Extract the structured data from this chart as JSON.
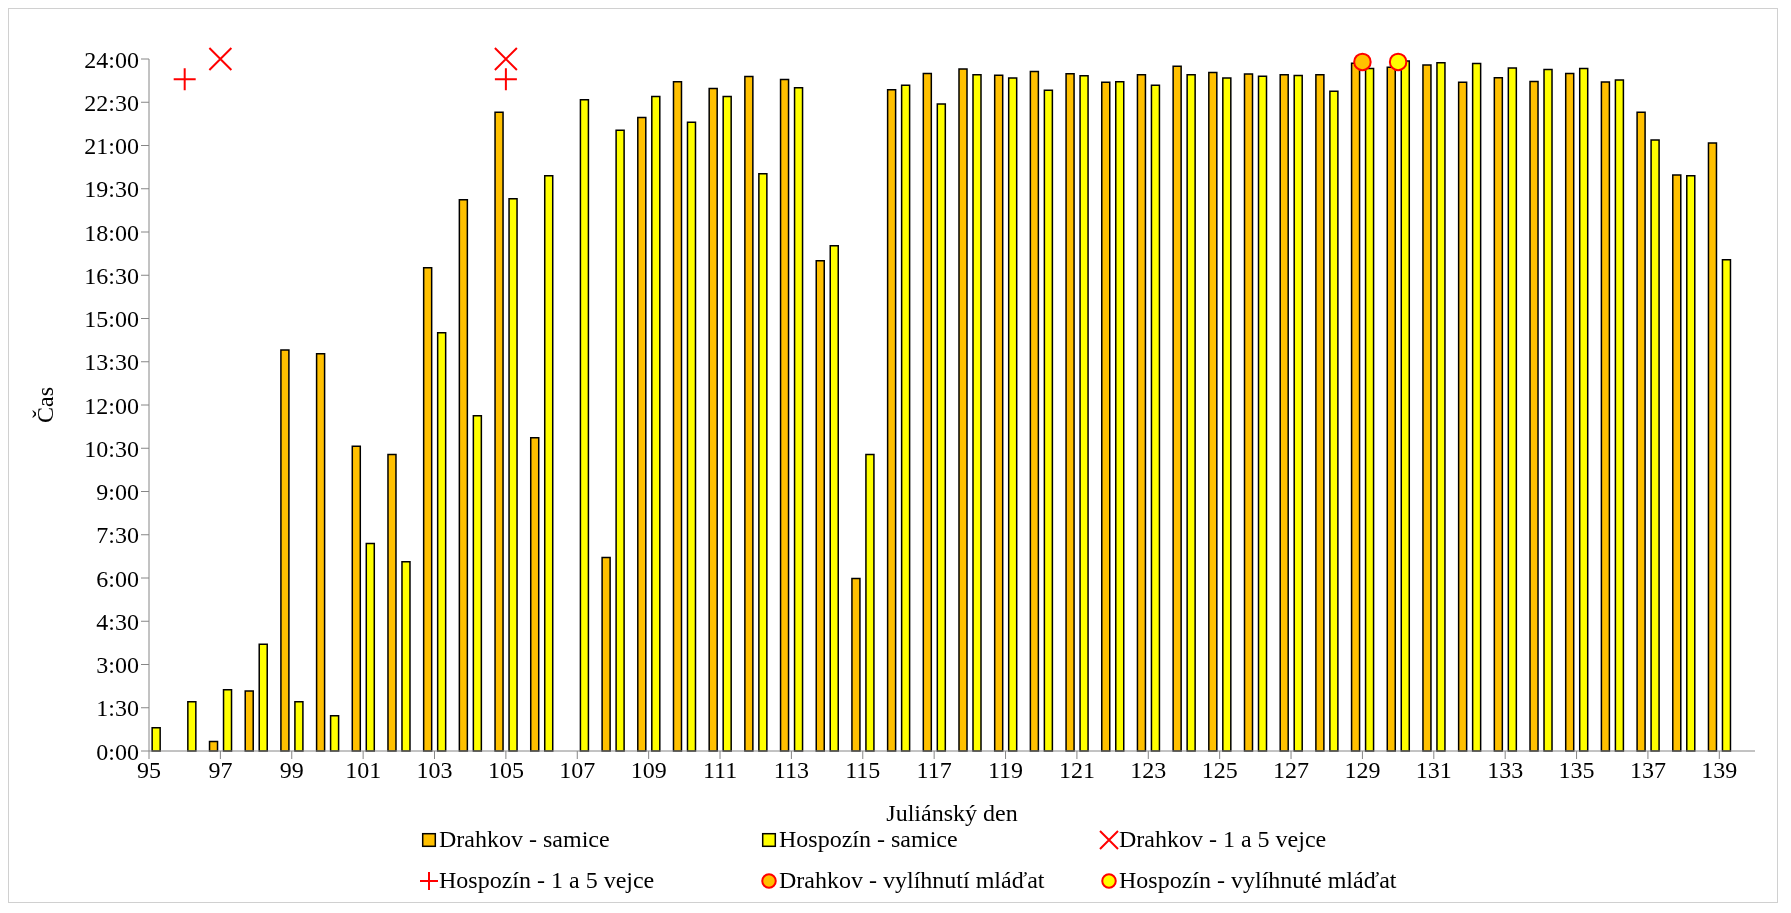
{
  "chart_data": {
    "type": "bar",
    "xlabel": "Juliánský den",
    "ylabel": "Čas",
    "x": [
      95,
      96,
      97,
      98,
      99,
      100,
      101,
      102,
      103,
      104,
      105,
      106,
      107,
      108,
      109,
      110,
      111,
      112,
      113,
      114,
      115,
      116,
      117,
      118,
      119,
      120,
      121,
      122,
      123,
      124,
      125,
      126,
      127,
      128,
      129,
      130,
      131,
      132,
      133,
      134,
      135,
      136,
      137,
      138,
      139
    ],
    "xlim": [
      95,
      140
    ],
    "xticks": [
      95,
      97,
      99,
      101,
      103,
      105,
      107,
      109,
      111,
      113,
      115,
      117,
      119,
      121,
      123,
      125,
      127,
      129,
      131,
      133,
      135,
      137,
      139
    ],
    "ylim": [
      0,
      24
    ],
    "yticks": [
      {
        "value": 0,
        "label": "0:00"
      },
      {
        "value": 1.5,
        "label": "1:30"
      },
      {
        "value": 3,
        "label": "3:00"
      },
      {
        "value": 4.5,
        "label": "4:30"
      },
      {
        "value": 6,
        "label": "6:00"
      },
      {
        "value": 7.5,
        "label": "7:30"
      },
      {
        "value": 9,
        "label": "9:00"
      },
      {
        "value": 10.5,
        "label": "10:30"
      },
      {
        "value": 12,
        "label": "12:00"
      },
      {
        "value": 13.5,
        "label": "13:30"
      },
      {
        "value": 15,
        "label": "15:00"
      },
      {
        "value": 16.5,
        "label": "16:30"
      },
      {
        "value": 18,
        "label": "18:00"
      },
      {
        "value": 19.5,
        "label": "19:30"
      },
      {
        "value": 21,
        "label": "21:00"
      },
      {
        "value": 22.5,
        "label": "22:30"
      },
      {
        "value": 24,
        "label": "24:00"
      }
    ],
    "grid": false,
    "legend": "bottom",
    "series": [
      {
        "name": "Drahkov - samice",
        "color": "#ffc000",
        "values": [
          null,
          null,
          0.33,
          2.08,
          13.91,
          13.78,
          10.57,
          10.28,
          16.76,
          19.12,
          22.15,
          10.86,
          null,
          6.71,
          21.97,
          23.21,
          22.98,
          23.39,
          23.29,
          17.0,
          5.98,
          22.93,
          23.5,
          23.65,
          23.44,
          23.57,
          23.49,
          23.19,
          23.45,
          23.75,
          23.53,
          23.48,
          23.45,
          23.45,
          23.85,
          23.71,
          23.79,
          23.19,
          23.35,
          23.22,
          23.5,
          23.2,
          22.15,
          19.98,
          21.09
        ]
      },
      {
        "name": "Hospozín - samice",
        "color": "#ffff00",
        "values": [
          0.81,
          1.71,
          2.12,
          3.7,
          1.71,
          1.22,
          7.2,
          6.56,
          14.51,
          11.63,
          19.15,
          19.95,
          22.59,
          21.53,
          22.7,
          21.81,
          22.7,
          20.02,
          23.0,
          17.52,
          10.28,
          23.09,
          22.44,
          23.45,
          23.34,
          22.92,
          23.42,
          23.21,
          23.09,
          23.45,
          23.34,
          23.4,
          23.43,
          22.88,
          23.67,
          23.93,
          23.87,
          23.84,
          23.69,
          23.64,
          23.67,
          23.27,
          21.19,
          19.95,
          17.04
        ]
      },
      {
        "name": "Drahkov - 1 a 5 vejce",
        "type": "scatter",
        "marker": "x",
        "color": "#ff0000",
        "x": [
          97,
          105
        ],
        "values": [
          24,
          24
        ]
      },
      {
        "name": "Hospozín - 1 a 5 vejce",
        "type": "scatter",
        "marker": "cross",
        "color": "#ff0000",
        "x": [
          96,
          105
        ],
        "values": [
          23.3,
          23.3
        ]
      },
      {
        "name": "Drahkov - vylíhnutí mláďat",
        "type": "scatter",
        "marker": "circle",
        "color": "#ffc000",
        "x": [
          129
        ],
        "values": [
          23.9
        ]
      },
      {
        "name": "Hospozín - vylíhnuté mláďat",
        "type": "scatter",
        "marker": "circle",
        "color": "#ffff00",
        "x": [
          130
        ],
        "values": [
          23.9
        ]
      }
    ]
  }
}
